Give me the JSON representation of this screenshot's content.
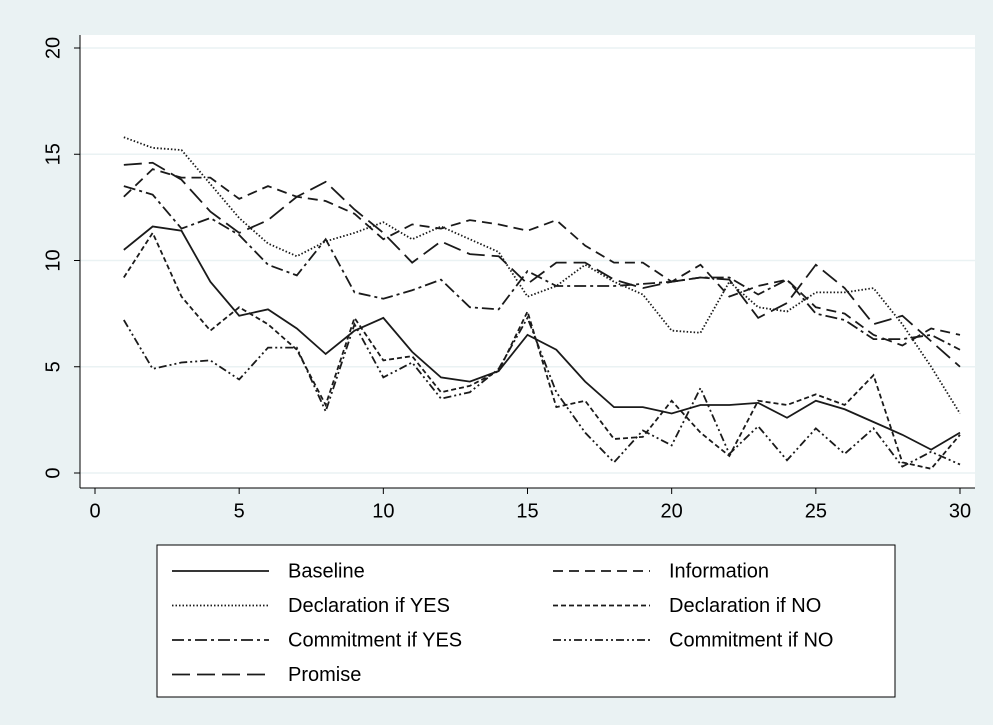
{
  "chart_data": {
    "type": "line",
    "x": [
      1,
      2,
      3,
      4,
      5,
      6,
      7,
      8,
      9,
      10,
      11,
      12,
      13,
      14,
      15,
      16,
      17,
      18,
      19,
      20,
      21,
      22,
      23,
      24,
      25,
      26,
      27,
      28,
      29,
      30
    ],
    "xlim": [
      0,
      30
    ],
    "xticks": [
      0,
      5,
      10,
      15,
      20,
      25,
      30
    ],
    "ylim": [
      0,
      20
    ],
    "yticks": [
      0,
      5,
      10,
      15,
      20
    ],
    "grid": true,
    "legend": "bottom",
    "series": [
      {
        "name": "Baseline",
        "color": "#1a1a1a",
        "dash": "none",
        "values": [
          10.5,
          11.6,
          11.4,
          9.0,
          7.4,
          7.7,
          6.8,
          5.6,
          6.7,
          7.3,
          5.7,
          4.5,
          4.3,
          4.8,
          6.5,
          5.8,
          4.3,
          3.1,
          3.1,
          2.8,
          3.2,
          3.2,
          3.3,
          2.6,
          3.4,
          3.0,
          2.4,
          1.8,
          1.1,
          1.9
        ]
      },
      {
        "name": "Information",
        "color": "#1a1a1a",
        "dash": "10 6",
        "values": [
          13.0,
          14.3,
          13.9,
          13.9,
          12.9,
          13.5,
          13.0,
          12.8,
          12.2,
          11.0,
          11.7,
          11.5,
          11.9,
          11.7,
          11.4,
          11.9,
          10.7,
          9.9,
          9.9,
          9.0,
          9.8,
          8.3,
          8.8,
          9.1,
          7.8,
          7.5,
          6.5,
          6.0,
          6.8,
          6.5
        ]
      },
      {
        "name": "Declaration if YES",
        "color": "#1a1a1a",
        "dash": "1.5 2",
        "values": [
          15.8,
          15.3,
          15.2,
          13.6,
          12.0,
          10.8,
          10.2,
          10.9,
          11.3,
          11.8,
          11.0,
          11.6,
          11.0,
          10.4,
          8.3,
          8.8,
          9.8,
          9.0,
          8.4,
          6.7,
          6.6,
          9.0,
          7.8,
          7.6,
          8.5,
          8.5,
          8.7,
          7.0,
          5.0,
          2.8
        ]
      },
      {
        "name": "Declaration if NO",
        "color": "#1a1a1a",
        "dash": "5 3",
        "values": [
          9.2,
          11.3,
          8.3,
          6.7,
          7.8,
          7.0,
          5.8,
          3.2,
          7.3,
          5.3,
          5.5,
          3.8,
          4.1,
          4.8,
          7.6,
          3.1,
          3.4,
          1.6,
          1.7,
          3.4,
          1.9,
          0.8,
          3.4,
          3.2,
          3.7,
          3.2,
          4.6,
          0.5,
          0.2,
          1.8
        ]
      },
      {
        "name": "Commitment if YES",
        "color": "#1a1a1a",
        "dash": "12 4 3 4",
        "values": [
          13.5,
          13.1,
          11.5,
          12.0,
          11.2,
          9.8,
          9.3,
          11.0,
          8.5,
          8.2,
          8.6,
          9.1,
          7.8,
          7.7,
          9.5,
          8.8,
          8.8,
          8.8,
          8.9,
          9.0,
          9.2,
          9.2,
          8.4,
          9.1,
          7.5,
          7.2,
          6.3,
          6.3,
          6.5,
          5.8
        ]
      },
      {
        "name": "Commitment if NO",
        "color": "#1a1a1a",
        "dash": "8 3 2 3 2 3",
        "values": [
          7.2,
          4.9,
          5.2,
          5.3,
          4.4,
          5.9,
          5.9,
          2.9,
          7.0,
          4.5,
          5.2,
          3.5,
          3.8,
          4.9,
          7.3,
          3.8,
          1.9,
          0.5,
          2.0,
          1.3,
          4.0,
          0.9,
          2.2,
          0.6,
          2.1,
          0.9,
          2.1,
          0.3,
          1.0,
          0.4
        ]
      },
      {
        "name": "Promise",
        "color": "#1a1a1a",
        "dash": "18 7",
        "values": [
          14.5,
          14.6,
          13.8,
          12.3,
          11.3,
          11.9,
          13.0,
          13.7,
          12.4,
          11.3,
          9.9,
          10.9,
          10.3,
          10.2,
          8.9,
          9.9,
          9.9,
          9.1,
          8.7,
          9.0,
          9.2,
          9.1,
          7.3,
          8.0,
          9.8,
          8.7,
          7.0,
          7.4,
          6.2,
          5.0
        ]
      }
    ]
  }
}
